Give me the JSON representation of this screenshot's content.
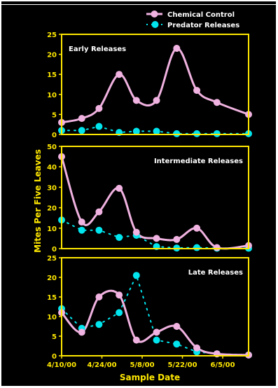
{
  "colors": {
    "background": "#000000",
    "panel_border": "#ffe800",
    "chemical": "#f0b2e0",
    "predator": "#00e5ee",
    "text": "#ffffff",
    "axis_text": "#ffe800"
  },
  "legend": {
    "position": "top-right",
    "items": [
      "Chemical Control",
      "Predator Releases"
    ]
  },
  "chart_data": {
    "type": "line",
    "xlabel": "Sample Date",
    "ylabel": "Mites Per Five Leaves",
    "x_tick_labels": [
      "4/10/00",
      "4/24/00",
      "5/8/00",
      "5/22/00",
      "6/5/00"
    ],
    "x_tick_days": [
      0,
      14,
      28,
      42,
      56
    ],
    "x_range_days": [
      0,
      65
    ],
    "panels": [
      {
        "title": "Early Releases",
        "ylim": [
          0,
          25
        ],
        "yticks": [
          "0",
          "5",
          "10",
          "15",
          "20",
          "25"
        ],
        "series": [
          {
            "name": "Chemical Control",
            "x": [
              0,
              7,
              13,
              20,
              26,
              33,
              40,
              47,
              54,
              65
            ],
            "y": [
              3,
              4,
              6.5,
              15,
              8.5,
              8.5,
              21.5,
              11,
              8,
              5
            ]
          },
          {
            "name": "Predator Releases",
            "x": [
              0,
              7,
              13,
              20,
              26,
              33,
              40,
              47,
              54,
              65
            ],
            "y": [
              1,
              1,
              2,
              0.5,
              0.8,
              0.8,
              0.2,
              0.2,
              0.2,
              0.2
            ]
          }
        ]
      },
      {
        "title": "Intermediate Releases",
        "ylim": [
          0,
          50
        ],
        "yticks": [
          "0",
          "10",
          "20",
          "30",
          "40",
          "50"
        ],
        "series": [
          {
            "name": "Chemical Control",
            "x": [
              0,
              7,
              13,
              20,
              26,
              33,
              40,
              47,
              54,
              65
            ],
            "y": [
              45,
              13,
              18,
              29.5,
              8,
              5,
              4.5,
              10,
              0.5,
              1.5
            ]
          },
          {
            "name": "Predator Releases",
            "x": [
              0,
              7,
              13,
              20,
              26,
              33,
              40,
              47,
              54,
              65
            ],
            "y": [
              14,
              9,
              9,
              5.5,
              6.5,
              1,
              0.3,
              0.5,
              0.2,
              0.2
            ]
          }
        ]
      },
      {
        "title": "Late Releases",
        "ylim": [
          0,
          25
        ],
        "yticks": [
          "0",
          "5",
          "10",
          "15",
          "20",
          "25"
        ],
        "series": [
          {
            "name": "Chemical Control",
            "x": [
              0,
              7,
              13,
              20,
              26,
              33,
              40,
              47,
              54,
              65
            ],
            "y": [
              11,
              6,
              15,
              15.5,
              4,
              6,
              7.5,
              2,
              0.5,
              0.2
            ]
          },
          {
            "name": "Predator Releases",
            "x": [
              0,
              7,
              13,
              20,
              26,
              33,
              40,
              47,
              54,
              65
            ],
            "y": [
              12,
              7,
              8,
              11,
              20.5,
              4,
              3,
              1,
              0.5,
              0.2
            ]
          }
        ]
      }
    ]
  }
}
